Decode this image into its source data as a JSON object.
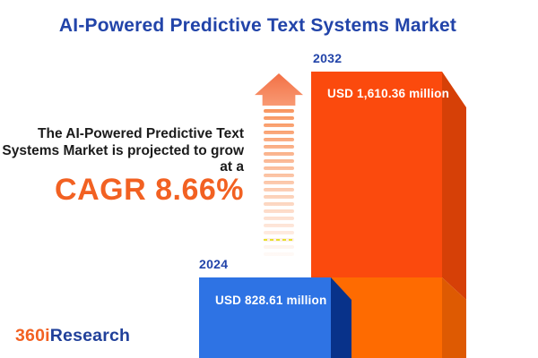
{
  "title": "AI-Powered Predictive Text Systems Market",
  "description": {
    "line1": "The AI-Powered Predictive Text",
    "line2": "Systems Market is projected to grow",
    "line3": "at a",
    "cagr": "CAGR 8.66%"
  },
  "bars": [
    {
      "year": "2024",
      "value_label": "USD 828.61 million"
    },
    {
      "year": "2032",
      "value_label": "USD 1,610.36 million"
    }
  ],
  "logo": {
    "prefix": "360i",
    "suffix": "Research"
  },
  "colors": {
    "title_blue": "#2244a9",
    "accent_orange": "#f26122",
    "bar_2024_front": "#2e73e4",
    "bar_2024_side": "#08328a",
    "bar_2032_front_upper": "#fb4a0d",
    "bar_2032_front_lower": "#fe6b01",
    "bar_2032_side_upper": "#d64007",
    "bar_2032_side_lower": "#de5a02",
    "arrow_salmon": "#f5814f",
    "text_dark": "#1b1b1b"
  },
  "chart_data": {
    "type": "bar",
    "title": "AI-Powered Predictive Text Systems Market",
    "categories": [
      "2024",
      "2032"
    ],
    "values": [
      828.61,
      1610.36
    ],
    "value_labels": [
      "USD 828.61 million",
      "USD 1,610.36 million"
    ],
    "unit": "USD million",
    "cagr_percent": 8.66,
    "xlabel": "",
    "ylabel": "",
    "legend": "none",
    "grid": false,
    "bar_style": "3d-isometric",
    "bar_colors": [
      "#2e73e4",
      "#fb4a0d"
    ]
  }
}
